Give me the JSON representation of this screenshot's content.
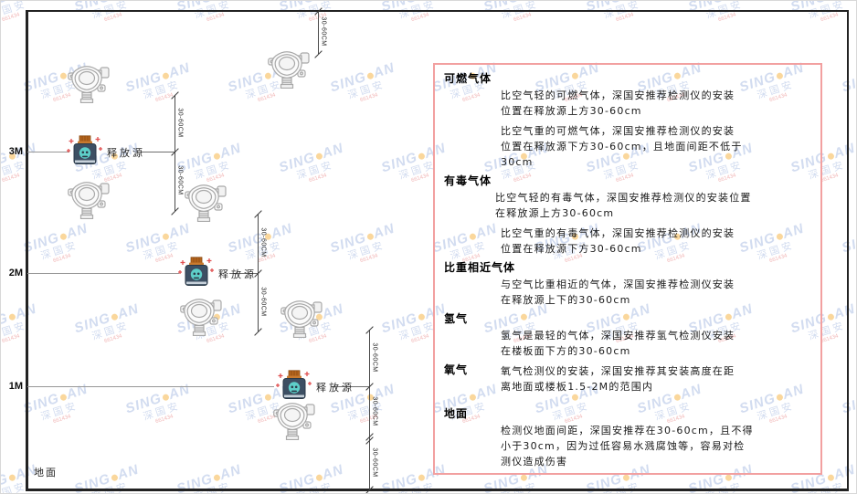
{
  "diagram": {
    "height_labels": [
      "3M",
      "2M",
      "1M"
    ],
    "dim_label": "30-60CM",
    "source_label": "释放源",
    "ground_label": "地面"
  },
  "panel": {
    "sections": [
      {
        "heading": "可燃气体",
        "paras": [
          "比空气轻的可燃气体，深国安推荐检测仪的安装\n位置在释放源上方30-60cm",
          "比空气重的可燃气体，深国安推荐检测仪的安装\n位置在释放源下方30-60cm，且地面间距不低于\n30cm"
        ]
      },
      {
        "heading": "有毒气体",
        "paras": [
          "比空气轻的有毒气体，深国安推荐检测仪的安装位置\n在释放源上方30-60cm",
          "比空气重的有毒气体，深国安推荐检测仪的安装\n位置在释放源下方30-60cm"
        ]
      },
      {
        "heading": "比重相近气体",
        "paras": [
          "与空气比重相近的气体，深国安推荐检测仪安装\n在释放源上下的30-60cm"
        ]
      },
      {
        "heading": "氢气",
        "paras": [
          "氢气是最轻的气体，深国安推荐氢气检测仪安装\n在楼板面下方的30-60cm"
        ]
      },
      {
        "heading": "氧气",
        "paras": [
          "氧气检测仪的安装，深国安推荐其安装高度在距\n离地面或楼板1.5-2M的范围内"
        ]
      },
      {
        "heading": "地面",
        "paras": [
          "检测仪地面间距，深国安推荐在30-60cm，且不得\n小于30cm，因为过低容易水溅腐蚀等，容易对检\n测仪造成伤害"
        ]
      }
    ]
  },
  "watermark": {
    "brand_left": "SING",
    "brand_right": "AN",
    "cjk": "深国安",
    "sub": "661434"
  },
  "colors": {
    "panel_border": "#f2a0a0",
    "watermark_blue": "rgba(105,140,205,0.30)",
    "dot_orange": "#f5a623",
    "source_body": "#3d4f63",
    "source_cap": "#b5651d",
    "skull_teal": "#5ecfc9"
  }
}
